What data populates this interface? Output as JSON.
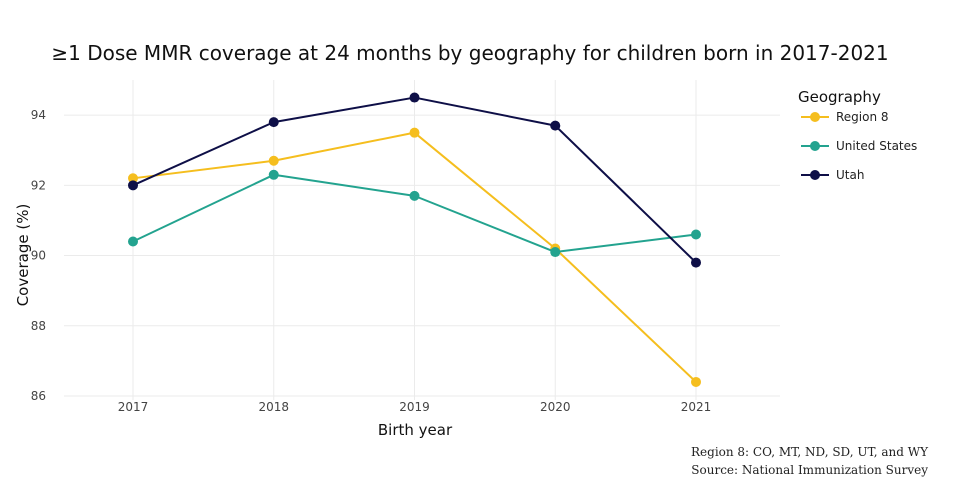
{
  "chart_data": {
    "type": "line",
    "title": "≥1 Dose MMR coverage at 24 months by geography for children born in 2017-2021",
    "xlabel": "Birth year",
    "ylabel": "Coverage (%)",
    "x": [
      2017,
      2018,
      2019,
      2020,
      2021
    ],
    "x_tick_labels": [
      "2017",
      "2018",
      "2019",
      "2020",
      "2021"
    ],
    "ylim": [
      86,
      95
    ],
    "y_ticks": [
      86,
      88,
      90,
      92,
      94
    ],
    "y_tick_labels": [
      "86",
      "88",
      "90",
      "92",
      "94"
    ],
    "grid": true,
    "legend_title": "Geography",
    "legend_position": "right",
    "series": [
      {
        "name": "Region 8",
        "color": "#F5BE1E",
        "values": [
          92.2,
          92.7,
          93.5,
          90.2,
          86.4
        ]
      },
      {
        "name": "United States",
        "color": "#23A38F",
        "values": [
          90.4,
          92.3,
          91.7,
          90.1,
          90.6
        ]
      },
      {
        "name": "Utah",
        "color": "#0E0F47",
        "values": [
          92.0,
          93.8,
          94.5,
          93.7,
          89.8
        ]
      }
    ],
    "footnotes": [
      "Region 8: CO, MT, ND, SD, UT, and WY",
      "Source: National Immunization Survey"
    ]
  }
}
